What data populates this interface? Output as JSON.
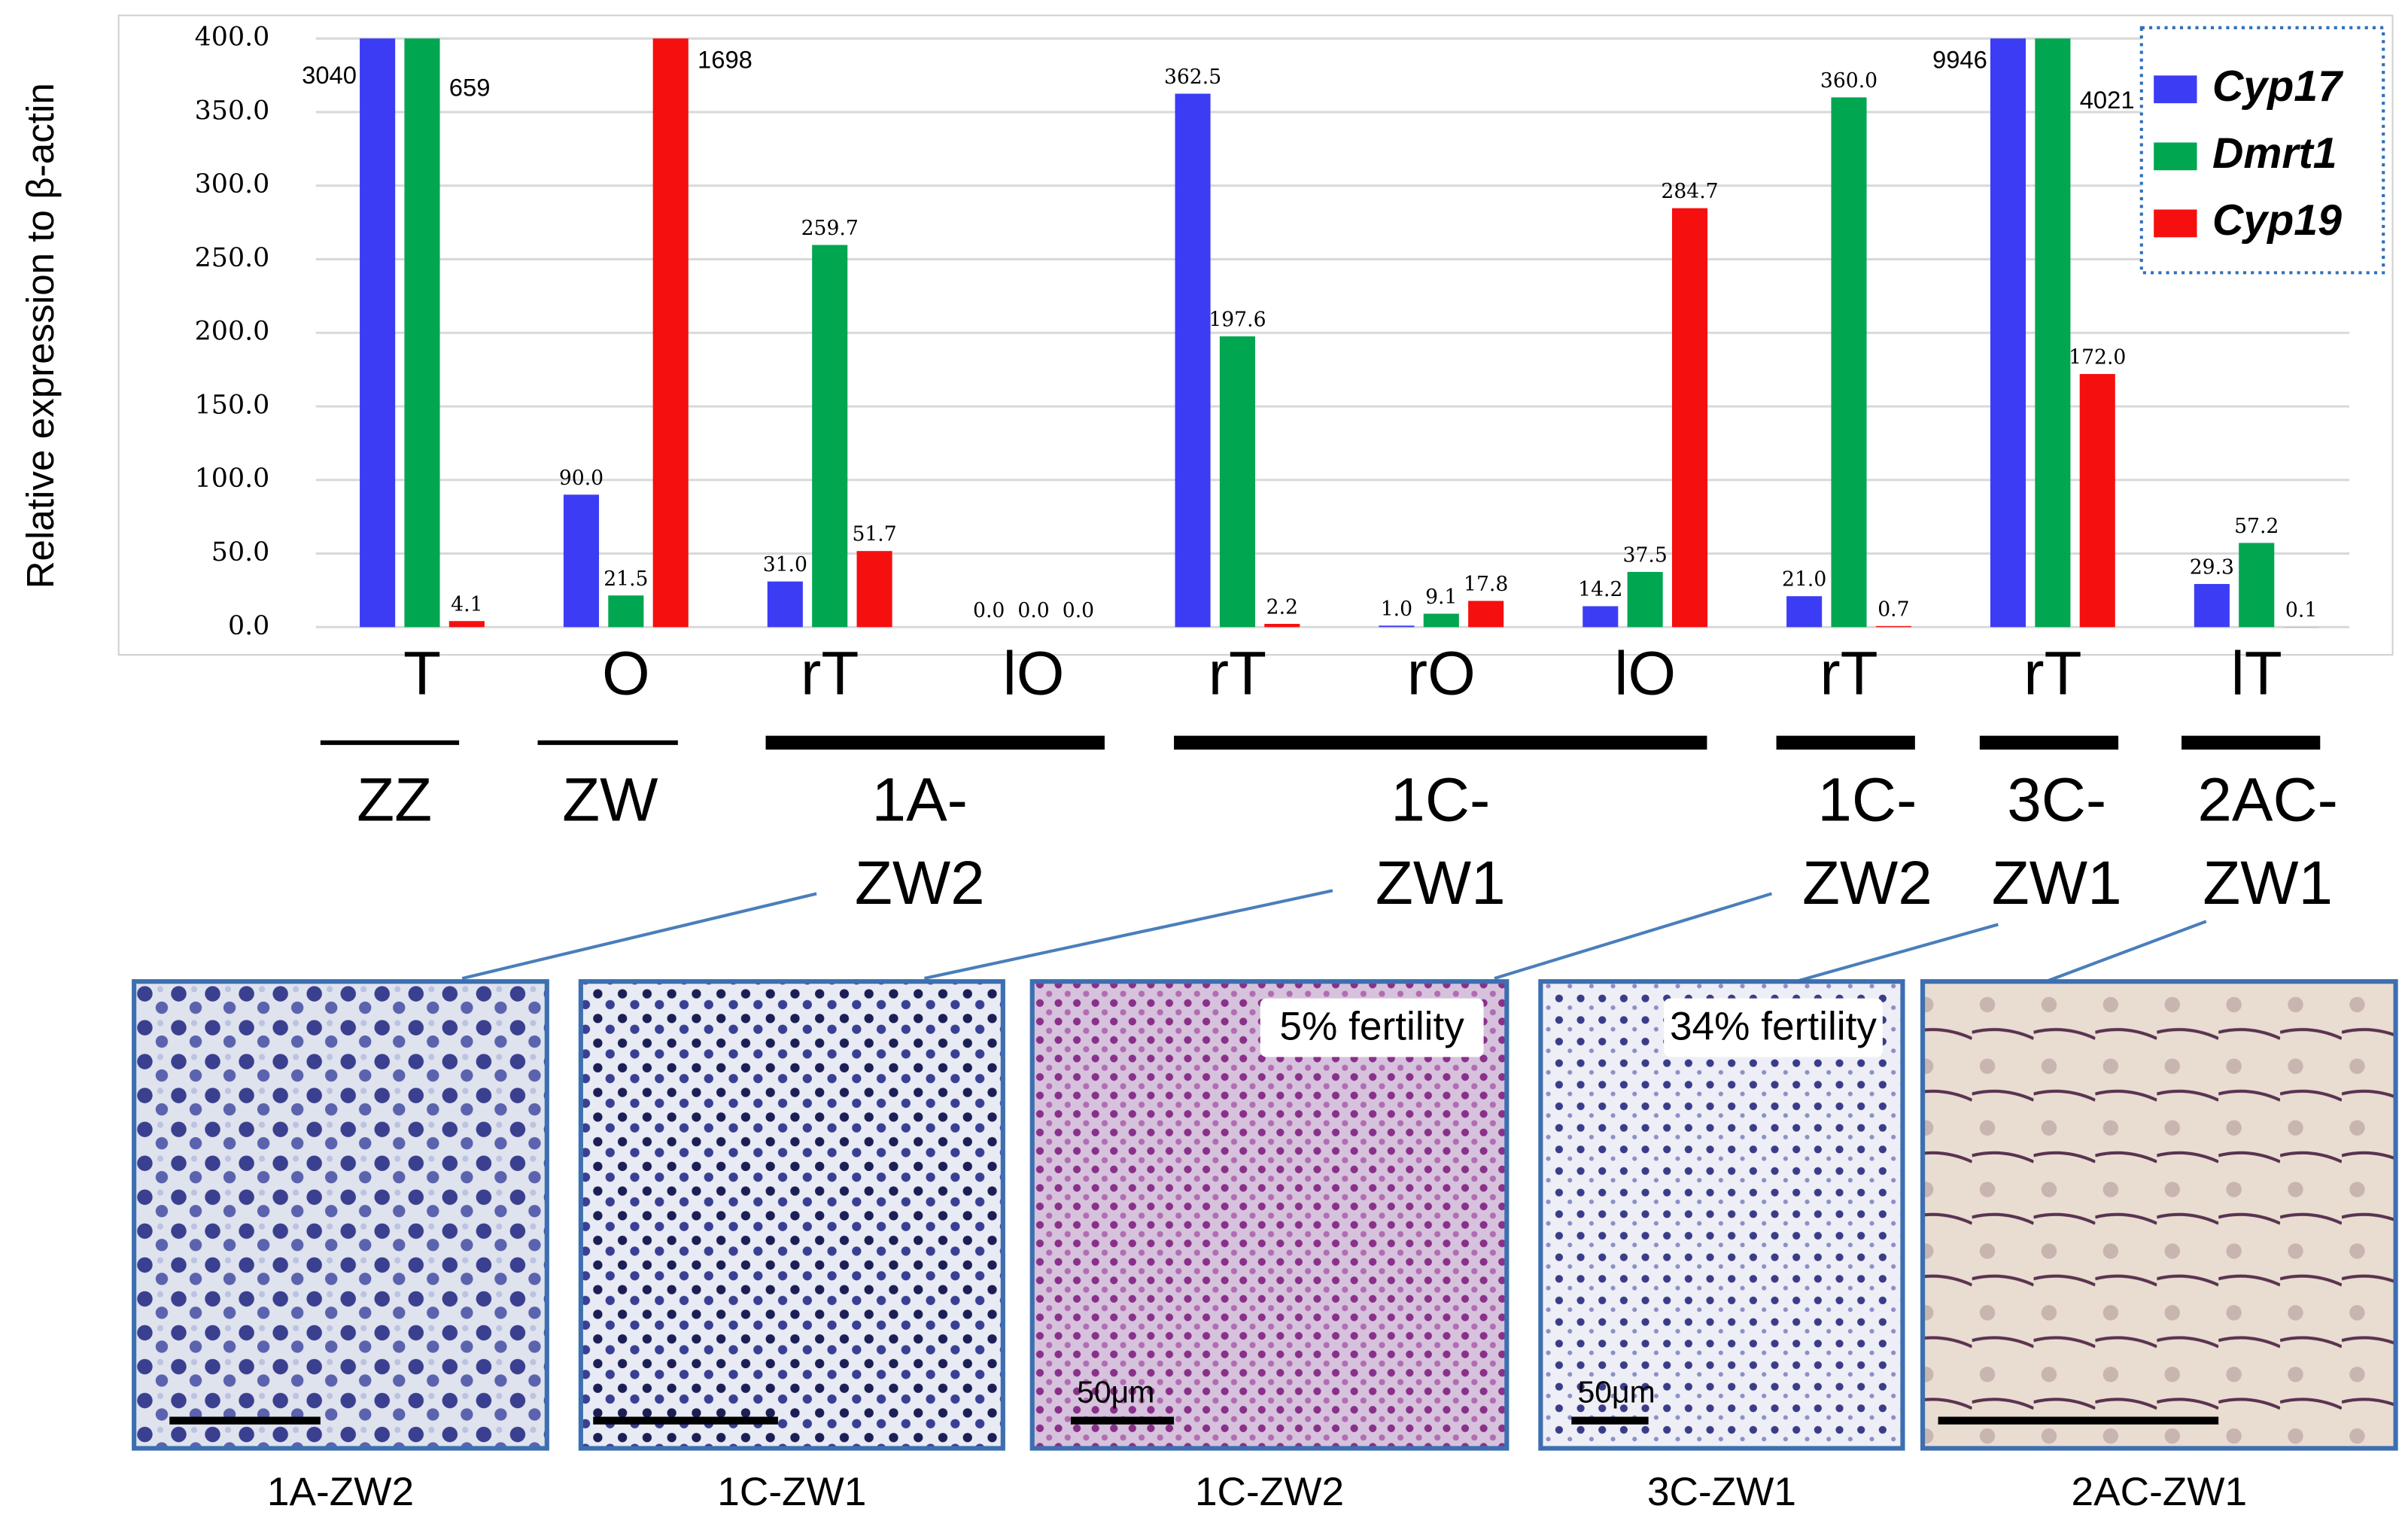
{
  "chart_data": {
    "type": "bar",
    "y_label": "Relative expression to β-actin",
    "categories": [
      "T",
      "O",
      "rT",
      "lO",
      "rT",
      "rO",
      "lO",
      "rT",
      "rT",
      "lT"
    ],
    "series": [
      {
        "name": "Cyp17",
        "color": "#3c3cf5",
        "values": [
          3040,
          90,
          31,
          0,
          362.5,
          1,
          14.2,
          21,
          9946,
          29.3
        ],
        "value_labels": [
          "3040",
          "90.0",
          "31.0",
          "0.0",
          "362.5",
          "1.0",
          "14.2",
          "21.0",
          "9946",
          "29.3"
        ]
      },
      {
        "name": "Dmrt1",
        "color": "#00a650",
        "values": [
          659,
          21.5,
          259.7,
          0,
          197.6,
          9.1,
          37.5,
          360,
          4021,
          57.2
        ],
        "value_labels": [
          "659",
          "21.5",
          "259.7",
          "0.0",
          "197.6",
          "9.1",
          "37.5",
          "360.0",
          "4021",
          "57.2"
        ]
      },
      {
        "name": "Cyp19",
        "color": "#f50f0f",
        "values": [
          4.1,
          1698,
          51.7,
          0,
          2.2,
          17.8,
          284.7,
          0.7,
          172,
          0.1
        ],
        "value_labels": [
          "4.1",
          "1698",
          "51.7",
          "0.0",
          "2.2",
          "17.8",
          "284.7",
          "0.7",
          "172.0",
          "0.1"
        ]
      }
    ],
    "ylim": [
      0,
      400
    ],
    "yticks": [
      {
        "value": 0,
        "label": "0.0"
      },
      {
        "value": 50,
        "label": "50.0"
      },
      {
        "value": 100,
        "label": "100.0"
      },
      {
        "value": 150,
        "label": "150.0"
      },
      {
        "value": 200,
        "label": "200.0"
      },
      {
        "value": 250,
        "label": "250.0"
      },
      {
        "value": 300,
        "label": "300.0"
      },
      {
        "value": 350,
        "label": "350.0"
      },
      {
        "value": 400,
        "label": "400.0"
      }
    ],
    "grid": true,
    "legend": "upper right",
    "groups": [
      {
        "label_lines": [
          "ZZ"
        ]
      },
      {
        "label_lines": [
          "ZW"
        ]
      },
      {
        "label_lines": [
          "1A-",
          "ZW2"
        ]
      },
      {
        "label_lines": [
          "1C-",
          "ZW1"
        ]
      },
      {
        "label_lines": [
          "1C-",
          "ZW2"
        ]
      },
      {
        "label_lines": [
          "3C-",
          "ZW1"
        ]
      },
      {
        "label_lines": [
          "2AC-",
          "ZW1"
        ]
      }
    ]
  },
  "panels": [
    {
      "caption": "1A-ZW2"
    },
    {
      "caption": "1C-ZW1"
    },
    {
      "caption": "1C-ZW2",
      "note": "5% fertility",
      "scale": "50μm"
    },
    {
      "caption": "3C-ZW1",
      "note": "34% fertility",
      "scale": "50μm"
    },
    {
      "caption": "2AC-ZW1"
    }
  ]
}
